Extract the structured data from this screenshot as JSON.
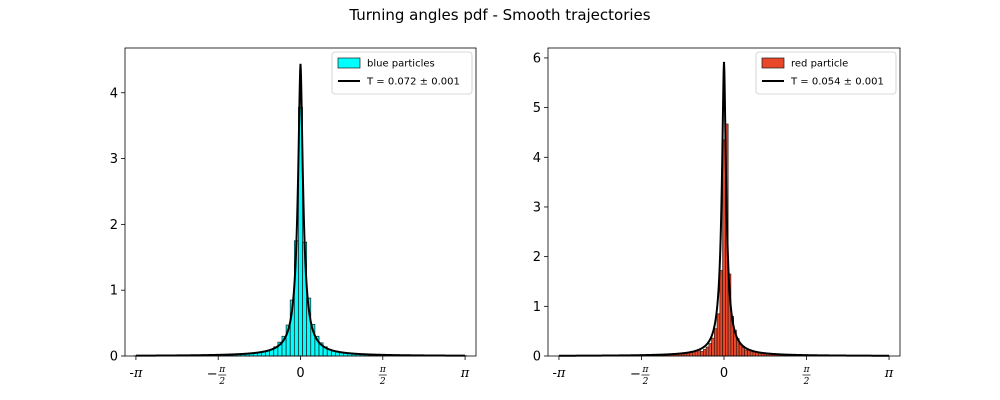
{
  "title": "Turning angles pdf - Smooth trajectories",
  "chart_data": [
    {
      "type": "bar",
      "subtype": "histogram-with-fit",
      "xlim": [
        -3.35,
        3.35
      ],
      "ylim": [
        0,
        4.68
      ],
      "x_ticks": [
        {
          "value": -3.14159,
          "label": "-π"
        },
        {
          "value": -1.5708,
          "label": "−π/2"
        },
        {
          "value": 0,
          "label": "0"
        },
        {
          "value": 1.5708,
          "label": "π/2"
        },
        {
          "value": 3.14159,
          "label": "π"
        }
      ],
      "y_ticks": [
        0,
        1,
        2,
        3,
        4
      ],
      "bin_width": 0.0785,
      "bins": {
        "centers": [
          -0.5495,
          -0.471,
          -0.3925,
          -0.314,
          -0.2355,
          -0.157,
          -0.0785,
          0,
          0.0785,
          0.157,
          0.2355,
          0.314,
          0.3925,
          0.471,
          0.5495
        ],
        "values": [
          0.1,
          0.14,
          0.21,
          0.3,
          0.47,
          0.85,
          1.75,
          3.78,
          1.73,
          0.88,
          0.48,
          0.3,
          0.2,
          0.14,
          0.1
        ]
      },
      "fit_curve": {
        "peak": 4.44,
        "scale": 0.072,
        "tail_ref": 0.1
      },
      "legend": {
        "position": "top-right",
        "entries": [
          {
            "label": "blue particles",
            "kind": "patch",
            "color": "#00ffff"
          },
          {
            "label": "T = 0.072 ± 0.001",
            "kind": "line",
            "color": "#000000"
          }
        ]
      },
      "colors": {
        "bars": "#00ffff",
        "edge": "#1a1a1a",
        "fit": "#000000"
      }
    },
    {
      "type": "bar",
      "subtype": "histogram-with-fit",
      "xlim": [
        -3.35,
        3.35
      ],
      "ylim": [
        0,
        6.2
      ],
      "x_ticks": [
        {
          "value": -3.14159,
          "label": "-π"
        },
        {
          "value": -1.5708,
          "label": "−π/2"
        },
        {
          "value": 0,
          "label": "0"
        },
        {
          "value": 1.5708,
          "label": "π/2"
        },
        {
          "value": 3.14159,
          "label": "π"
        }
      ],
      "y_ticks": [
        0,
        1,
        2,
        3,
        4,
        5,
        6
      ],
      "bin_width": 0.0524,
      "bins": {
        "centers": [
          -0.4192,
          -0.3668,
          -0.3144,
          -0.262,
          -0.2096,
          -0.1572,
          -0.1048,
          -0.0524,
          0,
          0.0524,
          0.1048,
          0.1572,
          0.2096,
          0.262,
          0.3144,
          0.3668,
          0.4192
        ],
        "values": [
          0.09,
          0.13,
          0.18,
          0.25,
          0.36,
          0.55,
          0.85,
          1.72,
          4.35,
          4.67,
          1.65,
          0.8,
          0.52,
          0.35,
          0.24,
          0.17,
          0.12
        ]
      },
      "fit_curve": {
        "peak": 5.92,
        "scale": 0.054,
        "tail_ref": 0.1
      },
      "legend": {
        "position": "top-right",
        "entries": [
          {
            "label": "red particle",
            "kind": "patch",
            "color": "#e8472a"
          },
          {
            "label": "T = 0.054 ± 0.001",
            "kind": "line",
            "color": "#000000"
          }
        ]
      },
      "colors": {
        "bars": "#e8472a",
        "edge": "#3a1a10",
        "fit": "#000000"
      }
    }
  ]
}
